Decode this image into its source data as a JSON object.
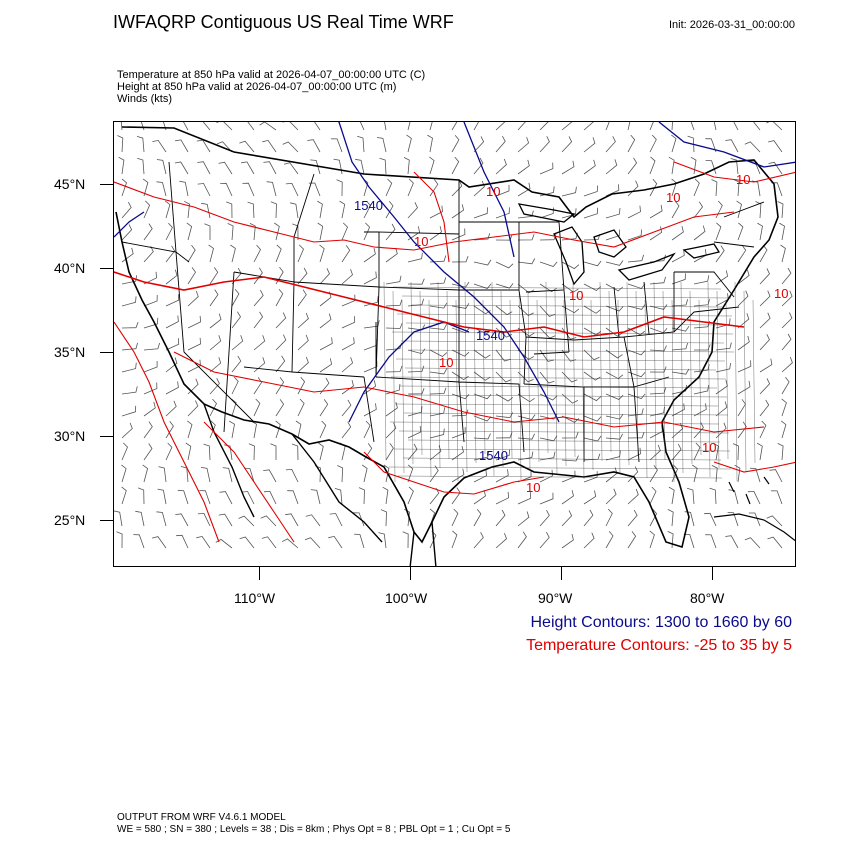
{
  "header": {
    "title": "IWFAQRP Contiguous US Real Time WRF",
    "init": "Init: 2026-03-31_00:00:00"
  },
  "fields": {
    "temperature": "Temperature at 850 hPa valid at 2026-04-07_00:00:00 UTC   (C)",
    "height": "Height at 850 hPa valid at 2026-04-07_00:00:00 UTC   (m)",
    "winds": "Winds   (kts)"
  },
  "axes": {
    "lat_labels": [
      "45°N",
      "40°N",
      "35°N",
      "30°N",
      "25°N"
    ],
    "lon_labels": [
      "110°W",
      "100°W",
      "90°W",
      "80°W"
    ]
  },
  "contour_labels": {
    "height": [
      "1540",
      "1540",
      "1540"
    ],
    "temperature": [
      "10",
      "10",
      "10",
      "10",
      "10",
      "10",
      "10",
      "10",
      "10"
    ]
  },
  "legend": {
    "height": "Height Contours: 1300 to 1660 by 60",
    "temperature": "Temperature Contours: -25 to 35 by 5"
  },
  "footer": {
    "line1": "OUTPUT FROM WRF V4.6.1 MODEL",
    "line2": "WE = 580 ; SN = 380 ; Levels = 38 ; Dis = 8km ; Phys Opt = 8 ; PBL Opt = 1 ; Cu Opt = 5"
  },
  "colors": {
    "height_contour": "#0a0a8c",
    "temperature_contour": "#e00000",
    "boundaries": "#000000"
  }
}
